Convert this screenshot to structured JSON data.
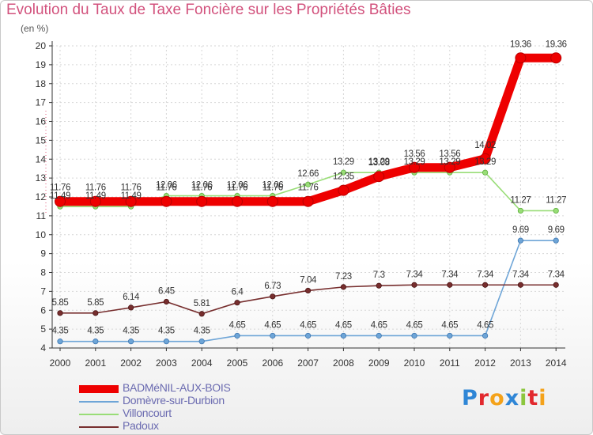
{
  "header": {
    "title": "Evolution du Taux de Taxe Foncière sur les Propriétés Bâties",
    "unit": "(en %)"
  },
  "chart_data": {
    "type": "line",
    "title": "Evolution du Taux de Taxe Foncière sur les Propriétés Bâties",
    "ylabel": "(en %)",
    "xlabel": "",
    "ylim": [
      4,
      20
    ],
    "y_ticks": [
      4,
      5,
      6,
      7,
      8,
      9,
      10,
      11,
      12,
      13,
      14,
      15,
      16,
      17,
      18,
      19,
      20
    ],
    "grid": true,
    "legend_position": "bottom-left",
    "categories": [
      "2000",
      "2001",
      "2002",
      "2003",
      "2004",
      "2005",
      "2006",
      "2007",
      "2008",
      "2009",
      "2010",
      "2011",
      "2012",
      "2013",
      "2014"
    ],
    "series": [
      {
        "name": "BADMéNIL-AUX-BOIS",
        "color": "#ee0000",
        "values": [
          11.76,
          11.76,
          11.76,
          11.76,
          11.76,
          11.76,
          11.76,
          11.76,
          12.35,
          13.08,
          13.56,
          13.56,
          14.02,
          19.36,
          19.36
        ],
        "labels": [
          "11.76",
          "11.76",
          "11.76",
          "11.76",
          "11.76",
          "11.76",
          "11.76",
          "11.76",
          "12.35",
          "13.08",
          "13.56",
          "13.56",
          "14.02",
          "19.36",
          "19.36"
        ]
      },
      {
        "name": "Domèvre-sur-Durbion",
        "color": "#6ea5d7",
        "values": [
          4.35,
          4.35,
          4.35,
          4.35,
          4.35,
          4.65,
          4.65,
          4.65,
          4.65,
          4.65,
          4.65,
          4.65,
          4.65,
          9.69,
          9.69
        ],
        "labels": [
          "4.35",
          "4.35",
          "4.35",
          "4.35",
          "4.35",
          "4.65",
          "4.65",
          "4.65",
          "4.65",
          "4.65",
          "4.65",
          "4.65",
          "4.65",
          "9.69",
          "9.69"
        ]
      },
      {
        "name": "Villoncourt",
        "color": "#99dd77",
        "values": [
          11.49,
          11.49,
          11.49,
          12.06,
          12.06,
          12.06,
          12.06,
          12.66,
          13.29,
          13.29,
          13.29,
          13.29,
          13.29,
          11.27,
          11.27
        ],
        "labels": [
          "11.49",
          "11.49",
          "11.49",
          "12.06",
          "12.06",
          "12.06",
          "12.06",
          "12.66",
          "13.29",
          "13.29",
          "13.29",
          "13.29",
          "13.29",
          "11.27",
          "11.27"
        ]
      },
      {
        "name": "Padoux",
        "color": "#772e2e",
        "values": [
          5.85,
          5.85,
          6.14,
          6.45,
          5.81,
          6.4,
          6.73,
          7.04,
          7.23,
          7.3,
          7.34,
          7.34,
          7.34,
          7.34,
          7.34
        ],
        "labels": [
          "5.85",
          "5.85",
          "6.14",
          "6.45",
          "5.81",
          "6.4",
          "6.73",
          "7.04",
          "7.23",
          "7.3",
          "7.34",
          "7.34",
          "7.34",
          "7.34",
          "7.34"
        ]
      }
    ]
  },
  "legend": {
    "items": [
      "BADMéNIL-AUX-BOIS",
      "Domèvre-sur-Durbion",
      "Villoncourt",
      "Padoux"
    ]
  },
  "logo": {
    "letters": [
      "P",
      "r",
      "o",
      "x",
      "i",
      "t",
      "i"
    ],
    "colors": [
      "#2f86d6",
      "#e2292e",
      "#f4a21a",
      "#2f86d6",
      "#8cc63e",
      "#e2292e",
      "#f4a21a"
    ]
  }
}
